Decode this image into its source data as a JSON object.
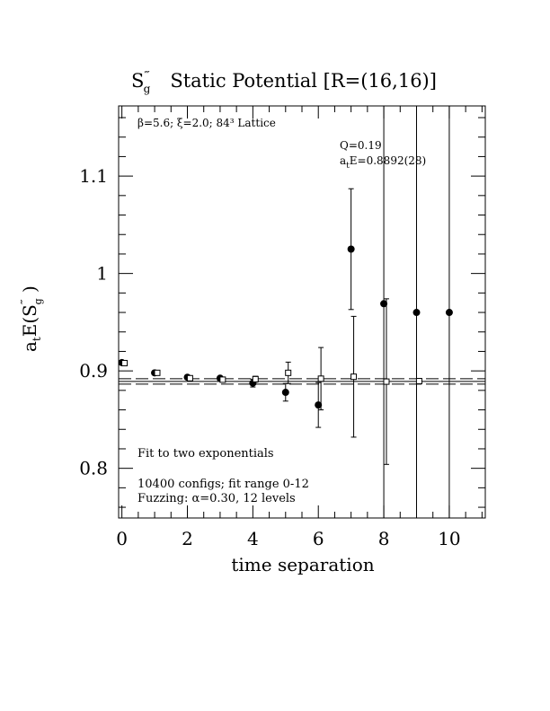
{
  "chart_data": {
    "type": "scatter",
    "title": {
      "operator_main": "S",
      "operator_sup": "‴",
      "operator_sub": "g",
      "rest": "Static Potential [R=(16,16)]"
    },
    "xlabel": "time separation",
    "ylabel": {
      "main": "a",
      "sub_t": "t",
      "mid": "E(S",
      "sup": "‴",
      "sub_g": "g",
      "end": " )"
    },
    "xlim": [
      -0.1,
      11.1
    ],
    "ylim": [
      0.749,
      1.172
    ],
    "x_ticks": [
      0,
      2,
      4,
      6,
      8,
      10
    ],
    "x_tick_labels": [
      "0",
      "2",
      "4",
      "6",
      "8",
      "10"
    ],
    "x_minor_step": 0.5,
    "y_ticks": [
      0.8,
      0.9,
      1.0,
      1.1
    ],
    "y_tick_labels": [
      "0.8",
      "0.9",
      "1",
      "1.1"
    ],
    "y_minor_step": 0.02,
    "annotations": {
      "params": "β=5.6; ξ=2.0; 84³ Lattice",
      "q_value": "Q=0.19",
      "energy_main": "a",
      "energy_sub": "t",
      "energy_rest": "E=0.8892(28)",
      "fit_type": "Fit to two exponentials",
      "configs": "10400 configs; fit range 0-12",
      "fuzzing": "Fuzzing: α=0.30, 12 levels"
    },
    "fit": {
      "value": 0.8892,
      "error": 0.0028
    },
    "series": [
      {
        "marker": "filled-circle",
        "points": [
          {
            "x": 0,
            "y": 0.9085,
            "err": 0.002
          },
          {
            "x": 1,
            "y": 0.898,
            "err": 0.002
          },
          {
            "x": 2,
            "y": 0.8935,
            "err": 0.002
          },
          {
            "x": 3,
            "y": 0.8925,
            "err": 0.002
          },
          {
            "x": 4,
            "y": 0.8875,
            "err": 0.004
          },
          {
            "x": 5,
            "y": 0.878,
            "err": 0.009
          },
          {
            "x": 6,
            "y": 0.865,
            "err": 0.023
          },
          {
            "x": 7,
            "y": 1.025,
            "err": 0.062
          },
          {
            "x": 8,
            "y": 0.969,
            "err": 0.32
          },
          {
            "x": 9,
            "y": 0.96,
            "err": 5.0
          },
          {
            "x": 10,
            "y": 0.96,
            "err": 5.0
          }
        ]
      },
      {
        "marker": "open-square",
        "points": [
          {
            "x": 0,
            "y": 0.908,
            "err": 0.0005
          },
          {
            "x": 1,
            "y": 0.898,
            "err": 0.0005
          },
          {
            "x": 2,
            "y": 0.8925,
            "err": 0.0006
          },
          {
            "x": 3,
            "y": 0.891,
            "err": 0.001
          },
          {
            "x": 4,
            "y": 0.8915,
            "err": 0.003
          },
          {
            "x": 5,
            "y": 0.898,
            "err": 0.011
          },
          {
            "x": 6,
            "y": 0.892,
            "err": 0.032
          },
          {
            "x": 7,
            "y": 0.894,
            "err": 0.062
          },
          {
            "x": 8,
            "y": 0.889,
            "err": 0.085
          },
          {
            "x": 9,
            "y": 0.8895,
            "err": 0.0
          }
        ]
      }
    ]
  }
}
